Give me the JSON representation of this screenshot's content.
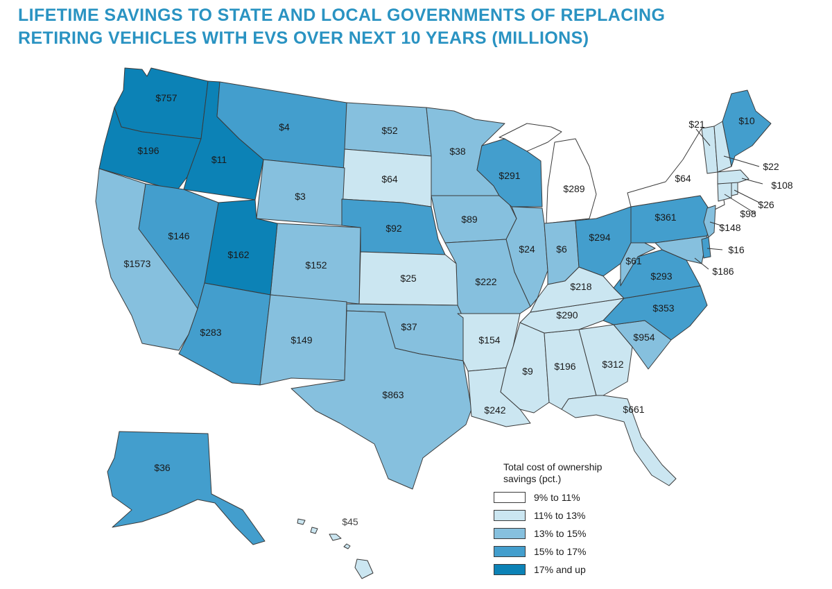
{
  "title": {
    "line1": "LIFETIME SAVINGS TO STATE AND LOCAL GOVERNMENTS OF REPLACING",
    "line2": "RETIRING VEHICLES WITH EVS OVER NEXT 10 YEARS (MILLIONS)"
  },
  "colors": {
    "c1": "#ffffff",
    "c2": "#cbe6f1",
    "c3": "#86c0de",
    "c4": "#439ecd",
    "c5": "#0c82b6",
    "title": "#2a93c2"
  },
  "legend": {
    "title_line1": "Total cost of ownership",
    "title_line2": "savings (pct.)",
    "items": [
      {
        "label": "9% to 11%",
        "color": "#ffffff"
      },
      {
        "label": "11% to 13%",
        "color": "#cbe6f1"
      },
      {
        "label": "13% to 15%",
        "color": "#86c0de"
      },
      {
        "label": "15% to 17%",
        "color": "#439ecd"
      },
      {
        "label": "17% and up",
        "color": "#0c82b6"
      }
    ]
  },
  "states": {
    "WA": {
      "value": "$757",
      "class": "17% and up"
    },
    "OR": {
      "value": "$196",
      "class": "17% and up"
    },
    "ID": {
      "value": "$11",
      "class": "17% and up"
    },
    "MT": {
      "value": "$4",
      "class": "15% to 17%"
    },
    "ND": {
      "value": "$52",
      "class": "13% to 15%"
    },
    "MN": {
      "value": "$38",
      "class": "13% to 15%"
    },
    "WI": {
      "value": "$291",
      "class": "15% to 17%"
    },
    "MI": {
      "value": "$289",
      "class": "9% to 11%"
    },
    "NY": {
      "value": "$64",
      "class": "9% to 11%"
    },
    "VT": {
      "value": "$21",
      "class": "11% to 13%"
    },
    "NH": {
      "value": "$22",
      "class": "11% to 13%"
    },
    "ME": {
      "value": "$10",
      "class": "15% to 17%"
    },
    "MA": {
      "value": "$108",
      "class": "11% to 13%"
    },
    "RI": {
      "value": "$26",
      "class": "11% to 13%"
    },
    "CT": {
      "value": "$98",
      "class": "11% to 13%"
    },
    "NJ": {
      "value": "$148",
      "class": "13% to 15%"
    },
    "DE": {
      "value": "$16",
      "class": "15% to 17%"
    },
    "MD": {
      "value": "$186",
      "class": "13% to 15%"
    },
    "SD": {
      "value": "$64",
      "class": "11% to 13%"
    },
    "WY": {
      "value": "$3",
      "class": "13% to 15%"
    },
    "NE": {
      "value": "$92",
      "class": "15% to 17%"
    },
    "IA": {
      "value": "$89",
      "class": "13% to 15%"
    },
    "IL": {
      "value": "$24",
      "class": "13% to 15%"
    },
    "IN": {
      "value": "$6",
      "class": "13% to 15%"
    },
    "OH": {
      "value": "$294",
      "class": "15% to 17%"
    },
    "PA": {
      "value": "$361",
      "class": "15% to 17%"
    },
    "WV": {
      "value": "$61",
      "class": "13% to 15%"
    },
    "VA": {
      "value": "$293",
      "class": "15% to 17%"
    },
    "NV": {
      "value": "$146",
      "class": "15% to 17%"
    },
    "UT": {
      "value": "$162",
      "class": "17% and up"
    },
    "CA": {
      "value": "$1573",
      "class": "13% to 15%"
    },
    "CO": {
      "value": "$152",
      "class": "13% to 15%"
    },
    "KS": {
      "value": "$25",
      "class": "11% to 13%"
    },
    "MO": {
      "value": "$222",
      "class": "13% to 15%"
    },
    "KY": {
      "value": "$218",
      "class": "11% to 13%"
    },
    "TN": {
      "value": "$290",
      "class": "11% to 13%"
    },
    "NC": {
      "value": "$353",
      "class": "15% to 17%"
    },
    "SC": {
      "value": "$954",
      "class": "13% to 15%"
    },
    "AZ": {
      "value": "$283",
      "class": "15% to 17%"
    },
    "NM": {
      "value": "$149",
      "class": "13% to 15%"
    },
    "OK": {
      "value": "$37",
      "class": "13% to 15%"
    },
    "AR": {
      "value": "$154",
      "class": "11% to 13%"
    },
    "MS": {
      "value": "$9",
      "class": "11% to 13%"
    },
    "AL": {
      "value": "$196",
      "class": "11% to 13%"
    },
    "GA": {
      "value": "$312",
      "class": "11% to 13%"
    },
    "TX": {
      "value": "$863",
      "class": "13% to 15%"
    },
    "LA": {
      "value": "$242",
      "class": "11% to 13%"
    },
    "FL": {
      "value": "$661",
      "class": "11% to 13%"
    },
    "AK": {
      "value": "$36",
      "class": "15% to 17%"
    },
    "HI": {
      "value": "$45",
      "class": "11% to 13%"
    }
  }
}
